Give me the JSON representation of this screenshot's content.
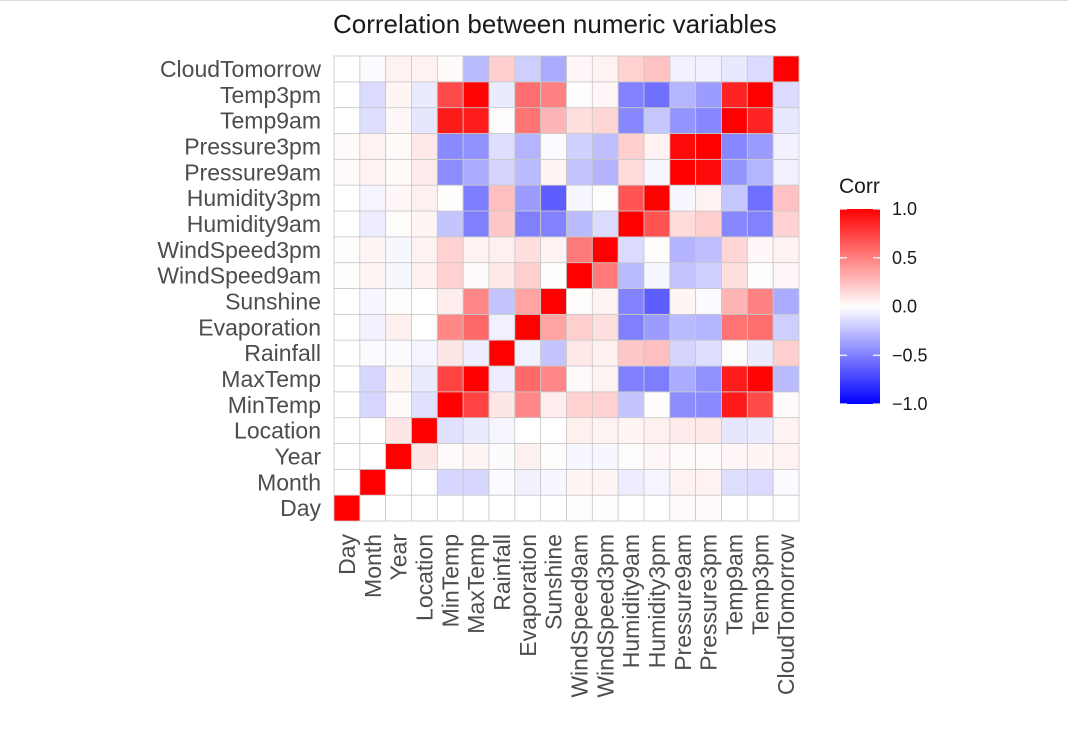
{
  "chart_data": {
    "type": "heatmap",
    "title": "Correlation between numeric variables",
    "xlabel": "",
    "ylabel": "",
    "variables": [
      "Day",
      "Month",
      "Year",
      "Location",
      "MinTemp",
      "MaxTemp",
      "Rainfall",
      "Evaporation",
      "Sunshine",
      "WindSpeed9am",
      "WindSpeed3pm",
      "Humidity9am",
      "Humidity3pm",
      "Pressure9am",
      "Pressure3pm",
      "Temp9am",
      "Temp3pm",
      "CloudTomorrow"
    ],
    "matrix": [
      [
        1.0,
        0.0,
        0.0,
        0.0,
        0.0,
        0.0,
        0.0,
        0.0,
        0.0,
        0.01,
        0.01,
        0.0,
        0.0,
        0.02,
        0.02,
        0.0,
        0.0,
        0.0
      ],
      [
        0.0,
        1.0,
        0.0,
        0.0,
        -0.16,
        -0.16,
        -0.02,
        -0.05,
        -0.03,
        0.04,
        0.04,
        -0.07,
        -0.04,
        0.05,
        0.05,
        -0.13,
        -0.14,
        -0.02
      ],
      [
        0.0,
        0.0,
        1.0,
        0.1,
        0.02,
        0.04,
        -0.01,
        0.06,
        0.01,
        -0.03,
        -0.03,
        0.01,
        0.03,
        0.02,
        0.02,
        0.03,
        0.04,
        0.05
      ],
      [
        0.0,
        0.0,
        0.1,
        1.0,
        -0.12,
        -0.08,
        -0.04,
        0.0,
        0.0,
        0.06,
        0.05,
        0.04,
        0.06,
        0.08,
        0.09,
        -0.1,
        -0.08,
        0.05
      ],
      [
        0.0,
        -0.16,
        0.02,
        -0.12,
        1.0,
        0.74,
        0.1,
        0.47,
        0.07,
        0.18,
        0.18,
        -0.23,
        0.01,
        -0.45,
        -0.46,
        0.9,
        0.71,
        0.02
      ],
      [
        0.0,
        -0.16,
        0.04,
        -0.08,
        0.74,
        1.0,
        -0.07,
        0.59,
        0.47,
        0.02,
        0.05,
        -0.5,
        -0.51,
        -0.33,
        -0.43,
        0.89,
        0.98,
        -0.27
      ],
      [
        0.0,
        -0.02,
        -0.01,
        -0.04,
        0.1,
        -0.07,
        1.0,
        -0.06,
        -0.23,
        0.09,
        0.06,
        0.22,
        0.25,
        -0.17,
        -0.13,
        0.01,
        -0.08,
        0.19
      ],
      [
        0.0,
        -0.05,
        0.06,
        0.0,
        0.47,
        0.59,
        -0.06,
        1.0,
        0.36,
        0.19,
        0.13,
        -0.5,
        -0.39,
        -0.27,
        -0.29,
        0.55,
        0.57,
        -0.19
      ],
      [
        0.0,
        -0.03,
        0.01,
        0.0,
        0.07,
        0.47,
        -0.23,
        0.36,
        1.0,
        0.01,
        0.05,
        -0.49,
        -0.63,
        0.04,
        -0.02,
        0.29,
        0.49,
        -0.33
      ],
      [
        0.01,
        0.04,
        -0.03,
        0.06,
        0.18,
        0.02,
        0.09,
        0.19,
        0.01,
        1.0,
        0.52,
        -0.27,
        -0.03,
        -0.23,
        -0.18,
        0.13,
        0.01,
        0.03
      ],
      [
        0.01,
        0.04,
        -0.03,
        0.05,
        0.18,
        0.05,
        0.06,
        0.13,
        0.05,
        0.52,
        1.0,
        -0.14,
        0.01,
        -0.3,
        -0.25,
        0.16,
        0.03,
        0.05
      ],
      [
        0.0,
        -0.07,
        0.01,
        0.04,
        -0.23,
        -0.5,
        0.22,
        -0.5,
        -0.49,
        -0.27,
        -0.14,
        1.0,
        0.67,
        0.14,
        0.19,
        -0.47,
        -0.49,
        0.18
      ],
      [
        0.0,
        -0.04,
        0.03,
        0.06,
        0.01,
        -0.51,
        0.25,
        -0.39,
        -0.63,
        -0.03,
        0.01,
        0.67,
        1.0,
        -0.03,
        0.05,
        -0.22,
        -0.56,
        0.24
      ],
      [
        0.02,
        0.05,
        0.02,
        0.08,
        -0.45,
        -0.33,
        -0.17,
        -0.27,
        0.04,
        -0.23,
        -0.3,
        0.14,
        -0.03,
        1.0,
        0.96,
        -0.42,
        -0.29,
        -0.06
      ],
      [
        0.02,
        0.05,
        0.02,
        0.09,
        -0.46,
        -0.43,
        -0.13,
        -0.29,
        -0.02,
        -0.18,
        -0.25,
        0.19,
        0.05,
        0.96,
        1.0,
        -0.47,
        -0.39,
        -0.05
      ],
      [
        0.0,
        -0.13,
        0.03,
        -0.1,
        0.9,
        0.89,
        0.01,
        0.55,
        0.29,
        0.13,
        0.16,
        -0.47,
        -0.22,
        -0.42,
        -0.47,
        1.0,
        0.86,
        -0.09
      ],
      [
        0.0,
        -0.14,
        0.04,
        -0.08,
        0.71,
        0.98,
        -0.08,
        0.57,
        0.49,
        0.01,
        0.03,
        -0.49,
        -0.56,
        -0.29,
        -0.39,
        0.86,
        1.0,
        -0.14
      ],
      [
        0.0,
        -0.02,
        0.05,
        0.05,
        0.02,
        -0.27,
        0.19,
        -0.19,
        -0.33,
        0.03,
        0.05,
        0.18,
        0.24,
        -0.06,
        -0.05,
        -0.09,
        -0.14,
        1.0
      ]
    ],
    "legend": {
      "title": "Corr",
      "position": "right",
      "tick_labels": [
        "1.0",
        "0.5",
        "0.0",
        "−0.5",
        "−1.0"
      ],
      "tick_values": [
        1.0,
        0.5,
        0.0,
        -0.5,
        -1.0
      ],
      "range": [
        -1,
        1
      ]
    },
    "colors": {
      "low": "#0000ff",
      "mid": "#ffffff",
      "high": "#ff0000",
      "grid": "#c8c8c8",
      "axis_text": "#4d4d4d"
    },
    "grid": true
  }
}
